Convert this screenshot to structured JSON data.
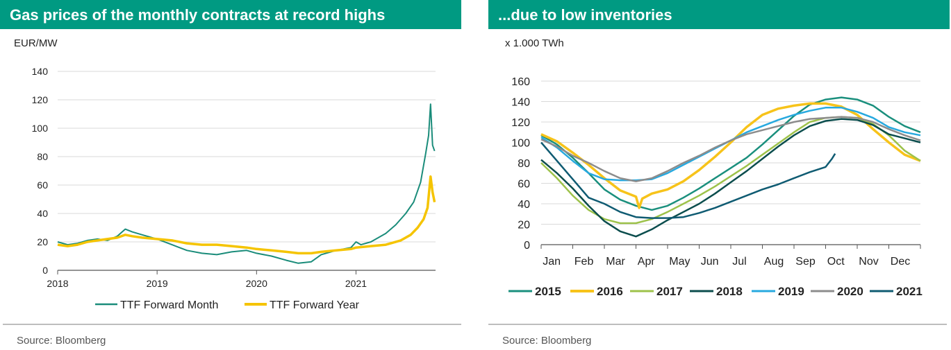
{
  "left_panel": {
    "title": "Gas prices of the monthly contracts at record highs",
    "unit": "EUR/MW",
    "source": "Source: Bloomberg"
  },
  "right_panel": {
    "title": "...due to low inventories",
    "unit": "x 1.000 TWh",
    "source": "Source: Bloomberg"
  },
  "colors": {
    "header": "#009a82",
    "ttf_month": "#1a8c7a",
    "ttf_year": "#f5c400",
    "2015": "#1a8f7d",
    "2016": "#f7c31a",
    "2017": "#9dc24a",
    "2018": "#0b4d4d",
    "2019": "#27a9df",
    "2020": "#8c8c8c",
    "2021": "#0f5b72"
  },
  "chart_data": [
    {
      "type": "line",
      "title": "Gas prices of the monthly contracts at record highs",
      "ylabel": "EUR/MW",
      "ylim": [
        0,
        140
      ],
      "yticks": [
        0,
        20,
        40,
        60,
        80,
        100,
        120,
        140
      ],
      "xlim": [
        2018.0,
        2021.8
      ],
      "xticks": [
        "2018",
        "2019",
        "2020",
        "2021"
      ],
      "grid": true,
      "legend": "bottom",
      "series": [
        {
          "name": "TTF Forward Month",
          "x": [
            2018.0,
            2018.1,
            2018.2,
            2018.3,
            2018.4,
            2018.5,
            2018.6,
            2018.68,
            2018.75,
            2018.85,
            2019.0,
            2019.15,
            2019.3,
            2019.45,
            2019.6,
            2019.75,
            2019.9,
            2020.0,
            2020.15,
            2020.3,
            2020.42,
            2020.55,
            2020.65,
            2020.8,
            2020.95,
            2021.0,
            2021.05,
            2021.15,
            2021.3,
            2021.4,
            2021.5,
            2021.58,
            2021.65,
            2021.7,
            2021.73,
            2021.75,
            2021.77,
            2021.79
          ],
          "values": [
            20,
            18,
            19,
            21,
            22,
            21,
            24,
            29,
            27,
            25,
            22,
            18,
            14,
            12,
            11,
            13,
            14,
            12,
            10,
            7,
            5,
            6,
            11,
            14,
            16,
            20,
            18,
            20,
            26,
            32,
            40,
            48,
            62,
            82,
            95,
            117,
            88,
            84
          ]
        },
        {
          "name": "TTF Forward Year",
          "x": [
            2018.0,
            2018.1,
            2018.2,
            2018.3,
            2018.4,
            2018.5,
            2018.6,
            2018.68,
            2018.75,
            2018.85,
            2019.0,
            2019.15,
            2019.3,
            2019.45,
            2019.6,
            2019.75,
            2019.9,
            2020.0,
            2020.15,
            2020.3,
            2020.42,
            2020.55,
            2020.65,
            2020.8,
            2020.95,
            2021.0,
            2021.15,
            2021.3,
            2021.45,
            2021.55,
            2021.62,
            2021.68,
            2021.72,
            2021.75,
            2021.77,
            2021.79
          ],
          "values": [
            18,
            17,
            18,
            20,
            21,
            22,
            23,
            25,
            24,
            23,
            22,
            21,
            19,
            18,
            18,
            17,
            16,
            15,
            14,
            13,
            12,
            12,
            13,
            14,
            15,
            16,
            17,
            18,
            21,
            25,
            30,
            36,
            44,
            66,
            55,
            48
          ]
        }
      ]
    },
    {
      "type": "line",
      "title": "...due to low inventories",
      "ylabel": "x 1.000 TWh",
      "ylim": [
        0,
        160
      ],
      "yticks": [
        0,
        20,
        40,
        60,
        80,
        100,
        120,
        140,
        160
      ],
      "categories": [
        "Jan",
        "Feb",
        "Mar",
        "Apr",
        "May",
        "Jun",
        "Jul",
        "Aug",
        "Sep",
        "Oct",
        "Nov",
        "Dec"
      ],
      "grid": true,
      "legend": "bottom",
      "series": [
        {
          "name": "2015",
          "x": [
            0,
            0.5,
            1,
            1.5,
            2,
            2.5,
            3,
            3.5,
            4,
            4.5,
            5,
            5.5,
            6,
            6.5,
            7,
            7.5,
            8,
            8.5,
            9,
            9.5,
            10,
            10.5,
            11,
            11.5,
            12
          ],
          "values": [
            107,
            98,
            85,
            70,
            54,
            44,
            38,
            34,
            38,
            46,
            55,
            65,
            75,
            85,
            98,
            112,
            126,
            137,
            142,
            144,
            142,
            136,
            125,
            116,
            110
          ]
        },
        {
          "name": "2016",
          "x": [
            0,
            0.5,
            1,
            1.5,
            2,
            2.5,
            3,
            3.1,
            3.2,
            3.5,
            4,
            4.5,
            5,
            5.5,
            6,
            6.5,
            7,
            7.5,
            8,
            8.5,
            9,
            9.5,
            10,
            10.5,
            11,
            11.5,
            12
          ],
          "values": [
            108,
            101,
            90,
            78,
            65,
            53,
            47,
            36,
            45,
            50,
            54,
            62,
            73,
            86,
            100,
            115,
            127,
            133,
            136,
            138,
            138,
            135,
            127,
            113,
            100,
            88,
            82
          ]
        },
        {
          "name": "2017",
          "x": [
            0,
            0.5,
            1,
            1.5,
            2,
            2.5,
            3,
            3.5,
            4,
            4.5,
            5,
            5.5,
            6,
            6.5,
            7,
            7.5,
            8,
            8.5,
            9,
            9.5,
            10,
            10.5,
            11,
            11.5,
            12
          ],
          "values": [
            80,
            65,
            48,
            34,
            25,
            21,
            21,
            25,
            32,
            40,
            48,
            57,
            67,
            77,
            88,
            99,
            110,
            120,
            124,
            125,
            124,
            118,
            107,
            92,
            82
          ]
        },
        {
          "name": "2018",
          "x": [
            0,
            0.5,
            1,
            1.5,
            2,
            2.5,
            3,
            3.5,
            4,
            4.5,
            5,
            5.5,
            6,
            6.5,
            7,
            7.5,
            8,
            8.5,
            9,
            9.5,
            10,
            10.5,
            11,
            11.5,
            12
          ],
          "values": [
            83,
            70,
            55,
            38,
            23,
            13,
            8,
            15,
            24,
            32,
            40,
            50,
            61,
            72,
            84,
            96,
            107,
            116,
            121,
            123,
            122,
            117,
            108,
            104,
            100
          ]
        },
        {
          "name": "2019",
          "x": [
            0,
            0.5,
            1,
            1.5,
            2,
            2.5,
            3,
            3.5,
            4,
            4.5,
            5,
            5.5,
            6,
            6.5,
            7,
            7.5,
            8,
            8.5,
            9,
            9.5,
            10,
            10.5,
            11,
            11.5,
            12
          ],
          "values": [
            105,
            95,
            82,
            70,
            64,
            63,
            63,
            64,
            70,
            78,
            86,
            94,
            102,
            110,
            116,
            122,
            127,
            131,
            134,
            134,
            130,
            124,
            115,
            110,
            107
          ]
        },
        {
          "name": "2020",
          "x": [
            0,
            0.5,
            1,
            1.5,
            2,
            2.5,
            3,
            3.5,
            4,
            4.5,
            5,
            5.5,
            6,
            6.5,
            7,
            7.5,
            8,
            8.5,
            9,
            9.5,
            10,
            10.5,
            11,
            11.5,
            12
          ],
          "values": [
            103,
            96,
            87,
            80,
            72,
            65,
            62,
            65,
            72,
            80,
            87,
            95,
            102,
            108,
            112,
            116,
            120,
            123,
            124,
            125,
            124,
            120,
            113,
            107,
            102
          ]
        },
        {
          "name": "2021",
          "x": [
            0,
            0.5,
            1,
            1.5,
            2,
            2.5,
            3,
            3.5,
            4,
            4.5,
            5,
            5.5,
            6,
            6.5,
            7,
            7.5,
            8,
            8.5,
            8.9,
            9.0,
            9.2,
            9.3
          ],
          "values": [
            100,
            82,
            64,
            46,
            40,
            32,
            27,
            26,
            26,
            27,
            31,
            36,
            42,
            48,
            54,
            59,
            65,
            71,
            75,
            76,
            84,
            89
          ]
        }
      ]
    }
  ]
}
